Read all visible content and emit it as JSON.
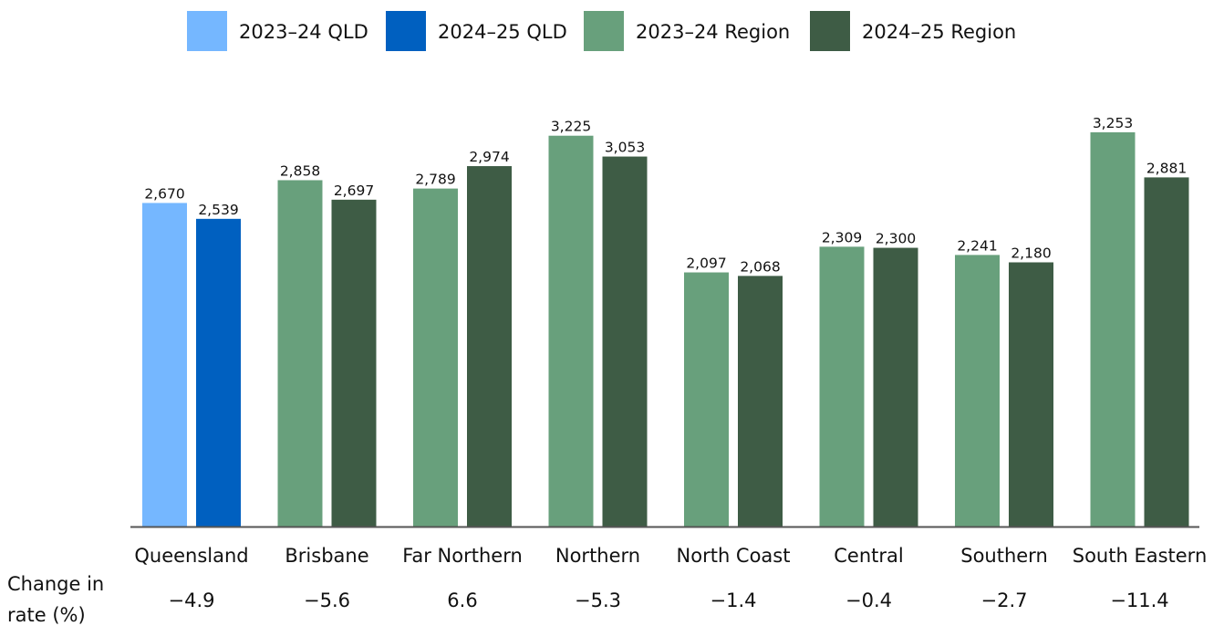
{
  "chart_data": {
    "type": "bar",
    "categories": [
      "Queensland",
      "Brisbane",
      "Far Northern",
      "Northern",
      "North Coast",
      "Central",
      "Southern",
      "South Eastern"
    ],
    "series": [
      {
        "name": "2023–24",
        "values": [
          2670,
          2858,
          2789,
          3225,
          2097,
          2309,
          2241,
          3253
        ],
        "value_labels": [
          "2,670",
          "2,858",
          "2,789",
          "3,225",
          "2,097",
          "2,309",
          "2,241",
          "3,253"
        ]
      },
      {
        "name": "2024–25",
        "values": [
          2539,
          2697,
          2974,
          3053,
          2068,
          2300,
          2180,
          2881
        ],
        "value_labels": [
          "2,539",
          "2,697",
          "2,974",
          "3,053",
          "2,068",
          "2,300",
          "2,180",
          "2,881"
        ]
      }
    ],
    "legend": [
      {
        "label": "2023–24 QLD",
        "color": "#75b7ff"
      },
      {
        "label": "2024–25 QLD",
        "color": "#0060c0"
      },
      {
        "label": "2023–24 Region",
        "color": "#68a07c"
      },
      {
        "label": "2024–25 Region",
        "color": "#3e5c45"
      }
    ],
    "legend_position": "top-center",
    "colors": {
      "qld_2023_24": "#75b7ff",
      "qld_2024_25": "#0060c0",
      "region_2023_24": "#68a07c",
      "region_2024_25": "#3e5c45",
      "axis": "#555555"
    },
    "change_row": {
      "label_line1": "Change in",
      "label_line2": "rate (%)",
      "values": [
        "−4.9",
        "−5.6",
        "6.6",
        "−5.3",
        "−1.4",
        "−0.4",
        "−2.7",
        "−11.4"
      ]
    },
    "ylim": [
      0,
      3253
    ],
    "grid": false,
    "y_axis_shown": false,
    "xlabel": "",
    "ylabel": ""
  }
}
